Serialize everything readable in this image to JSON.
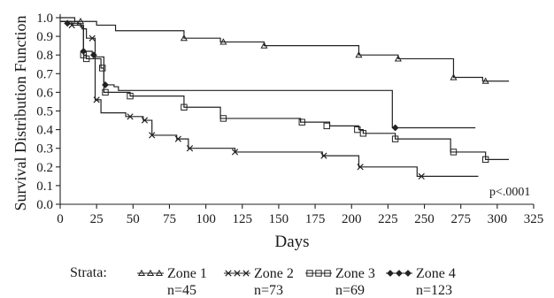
{
  "chart_data": {
    "type": "line",
    "subtype": "kaplan-meier-step",
    "xlabel": "Days",
    "ylabel": "Survival Distribution Function",
    "xlim": [
      0,
      325
    ],
    "ylim": [
      0.0,
      1.0
    ],
    "xticks": [
      0,
      25,
      50,
      75,
      100,
      125,
      150,
      175,
      200,
      225,
      250,
      275,
      300,
      325
    ],
    "yticks": [
      0.0,
      0.1,
      0.2,
      0.3,
      0.4,
      0.5,
      0.6,
      0.7,
      0.8,
      0.9,
      1.0
    ],
    "grid": false,
    "annotation": "p<.0001",
    "legend": {
      "title": "Strata:",
      "position": "bottom",
      "entries": [
        {
          "label": "Zone 1",
          "n": "n=45",
          "marker": "triangle"
        },
        {
          "label": "Zone 2",
          "n": "n=73",
          "marker": "cross"
        },
        {
          "label": "Zone 3",
          "n": "n=69",
          "marker": "square"
        },
        {
          "label": "Zone 4",
          "n": "n=123",
          "marker": "diamond"
        }
      ]
    },
    "series": [
      {
        "name": "Zone 1",
        "marker": "triangle",
        "steps": [
          [
            0,
            1.0
          ],
          [
            10,
            0.98
          ],
          [
            25,
            0.96
          ],
          [
            38,
            0.93
          ],
          [
            85,
            0.89
          ],
          [
            110,
            0.87
          ],
          [
            140,
            0.85
          ],
          [
            205,
            0.8
          ],
          [
            232,
            0.78
          ],
          [
            270,
            0.68
          ],
          [
            290,
            0.66
          ]
        ],
        "end": 308,
        "markers": [
          [
            14,
            0.98
          ],
          [
            85,
            0.89
          ],
          [
            112,
            0.87
          ],
          [
            140,
            0.85
          ],
          [
            205,
            0.8
          ],
          [
            232,
            0.78
          ],
          [
            270,
            0.68
          ],
          [
            292,
            0.66
          ]
        ]
      },
      {
        "name": "Zone 2",
        "marker": "cross",
        "steps": [
          [
            0,
            0.98
          ],
          [
            8,
            0.96
          ],
          [
            15,
            0.94
          ],
          [
            18,
            0.89
          ],
          [
            24,
            0.56
          ],
          [
            28,
            0.49
          ],
          [
            45,
            0.47
          ],
          [
            57,
            0.45
          ],
          [
            63,
            0.37
          ],
          [
            80,
            0.35
          ],
          [
            88,
            0.3
          ],
          [
            120,
            0.28
          ],
          [
            180,
            0.26
          ],
          [
            205,
            0.2
          ],
          [
            245,
            0.15
          ]
        ],
        "end": 287,
        "markers": [
          [
            8,
            0.96
          ],
          [
            22,
            0.89
          ],
          [
            25,
            0.56
          ],
          [
            48,
            0.47
          ],
          [
            58,
            0.45
          ],
          [
            63,
            0.37
          ],
          [
            81,
            0.35
          ],
          [
            89,
            0.3
          ],
          [
            120,
            0.28
          ],
          [
            181,
            0.26
          ],
          [
            206,
            0.2
          ],
          [
            248,
            0.15
          ]
        ]
      },
      {
        "name": "Zone 3",
        "marker": "square",
        "steps": [
          [
            0,
            0.98
          ],
          [
            12,
            0.96
          ],
          [
            16,
            0.8
          ],
          [
            18,
            0.78
          ],
          [
            24,
            0.78
          ],
          [
            28,
            0.73
          ],
          [
            30,
            0.6
          ],
          [
            48,
            0.58
          ],
          [
            85,
            0.52
          ],
          [
            110,
            0.46
          ],
          [
            165,
            0.44
          ],
          [
            185,
            0.42
          ],
          [
            205,
            0.4
          ],
          [
            208,
            0.38
          ],
          [
            230,
            0.35
          ],
          [
            268,
            0.28
          ],
          [
            292,
            0.24
          ]
        ],
        "end": 308,
        "markers": [
          [
            16,
            0.8
          ],
          [
            18,
            0.78
          ],
          [
            29,
            0.73
          ],
          [
            31,
            0.6
          ],
          [
            48,
            0.58
          ],
          [
            85,
            0.52
          ],
          [
            112,
            0.46
          ],
          [
            166,
            0.44
          ],
          [
            183,
            0.42
          ],
          [
            204,
            0.4
          ],
          [
            208,
            0.38
          ],
          [
            230,
            0.35
          ],
          [
            270,
            0.28
          ],
          [
            292,
            0.24
          ]
        ]
      },
      {
        "name": "Zone 4",
        "marker": "diamond",
        "steps": [
          [
            0,
            0.98
          ],
          [
            5,
            0.97
          ],
          [
            14,
            0.95
          ],
          [
            16,
            0.82
          ],
          [
            22,
            0.8
          ],
          [
            24,
            0.79
          ],
          [
            30,
            0.64
          ],
          [
            37,
            0.63
          ],
          [
            40,
            0.61
          ],
          [
            228,
            0.41
          ]
        ],
        "end": 285,
        "markers": [
          [
            5,
            0.97
          ],
          [
            16,
            0.82
          ],
          [
            23,
            0.8
          ],
          [
            31,
            0.64
          ],
          [
            230,
            0.41
          ]
        ]
      }
    ]
  }
}
